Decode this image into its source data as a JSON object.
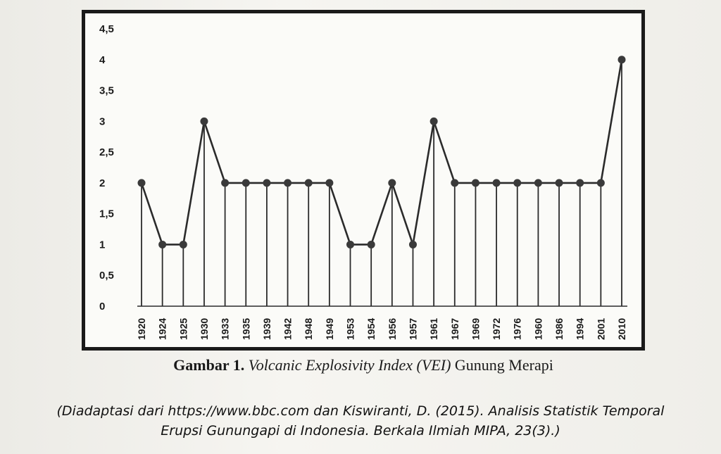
{
  "figure_caption": {
    "label": "Gambar 1.",
    "title_italic": "Volcanic Explosivity Index (VEI)",
    "title_rest": "Gunung Merapi"
  },
  "source_note": {
    "line1": "(Diadaptasi dari https://www.bbc.com dan Kiswiranti, D. (2015). Analisis Statistik Temporal",
    "line2": "Erupsi Gunungapi di Indonesia. Berkala Ilmiah MIPA, 23(3).)"
  },
  "chart_data": {
    "type": "line",
    "categories": [
      "1920",
      "1924",
      "1925",
      "1930",
      "1933",
      "1935",
      "1939",
      "1942",
      "1948",
      "1949",
      "1953",
      "1954",
      "1956",
      "1957",
      "1961",
      "1967",
      "1969",
      "1972",
      "1976",
      "1960",
      "1986",
      "1994",
      "2001",
      "2010"
    ],
    "series": [
      {
        "values": [
          2,
          1,
          1,
          3,
          2,
          2,
          2,
          2,
          2,
          2,
          1,
          1,
          2,
          1,
          3,
          2,
          2,
          2,
          2,
          2,
          2,
          2,
          2,
          4
        ]
      }
    ],
    "y_ticks": [
      "0",
      "0,5",
      "1",
      "1,5",
      "2",
      "2,5",
      "3",
      "3,5",
      "4",
      "4,5"
    ],
    "ylim": [
      0,
      4.5
    ],
    "drop_lines": true,
    "grid": false,
    "legend": "none",
    "colors": {
      "line": "#2b2b2b",
      "marker": "#3a3a3a",
      "frame": "#1a1a1a"
    }
  }
}
